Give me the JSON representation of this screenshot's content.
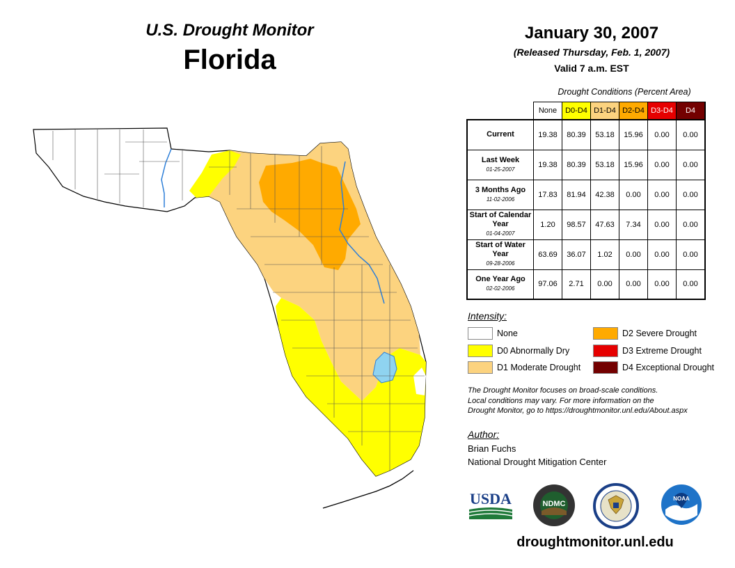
{
  "header": {
    "subtitle": "U.S. Drought Monitor",
    "state": "Florida",
    "date": "January 30, 2007",
    "released": "(Released Thursday, Feb. 1, 2007)",
    "valid": "Valid 7 a.m. EST"
  },
  "table": {
    "caption": "Drought Conditions (Percent Area)",
    "columns": [
      "None",
      "D0-D4",
      "D1-D4",
      "D2-D4",
      "D3-D4",
      "D4"
    ],
    "rows": [
      {
        "label": "Current",
        "date": "",
        "values": [
          "19.38",
          "80.39",
          "53.18",
          "15.96",
          "0.00",
          "0.00"
        ]
      },
      {
        "label": "Last Week",
        "date": "01-25-2007",
        "values": [
          "19.38",
          "80.39",
          "53.18",
          "15.96",
          "0.00",
          "0.00"
        ]
      },
      {
        "label": "3 Months Ago",
        "date": "11-02-2006",
        "values": [
          "17.83",
          "81.94",
          "42.38",
          "0.00",
          "0.00",
          "0.00"
        ]
      },
      {
        "label": "Start of Calendar Year",
        "date": "01-04-2007",
        "values": [
          "1.20",
          "98.57",
          "47.63",
          "7.34",
          "0.00",
          "0.00"
        ]
      },
      {
        "label": "Start of Water Year",
        "date": "09-28-2006",
        "values": [
          "63.69",
          "36.07",
          "1.02",
          "0.00",
          "0.00",
          "0.00"
        ]
      },
      {
        "label": "One Year Ago",
        "date": "02-02-2006",
        "values": [
          "97.06",
          "2.71",
          "0.00",
          "0.00",
          "0.00",
          "0.00"
        ]
      }
    ]
  },
  "legend": {
    "title": "Intensity:",
    "items": [
      {
        "label": "None",
        "color": "#ffffff"
      },
      {
        "label": "D0 Abnormally Dry",
        "color": "#ffff00"
      },
      {
        "label": "D1 Moderate Drought",
        "color": "#fcd37f"
      },
      {
        "label": "D2 Severe Drought",
        "color": "#ffaa00"
      },
      {
        "label": "D3 Extreme Drought",
        "color": "#e60000"
      },
      {
        "label": "D4 Exceptional Drought",
        "color": "#730000"
      }
    ]
  },
  "note": {
    "line1": "The Drought Monitor focuses on broad-scale conditions.",
    "line2": "Local conditions may vary. For more information on the",
    "line3": "Drought Monitor, go to https://droughtmonitor.unl.edu/About.aspx"
  },
  "author": {
    "title": "Author:",
    "name": "Brian Fuchs",
    "org": "National Drought Mitigation Center"
  },
  "logos": {
    "usda": "USDA",
    "ndmc": "NDMC",
    "noaa": "NOAA"
  },
  "website": "droughtmonitor.unl.edu",
  "colors": {
    "none": "#ffffff",
    "d0": "#ffff00",
    "d1": "#fcd37f",
    "d2": "#ffaa00",
    "d3": "#e60000",
    "d4": "#730000",
    "water": "#8fd3f0"
  }
}
